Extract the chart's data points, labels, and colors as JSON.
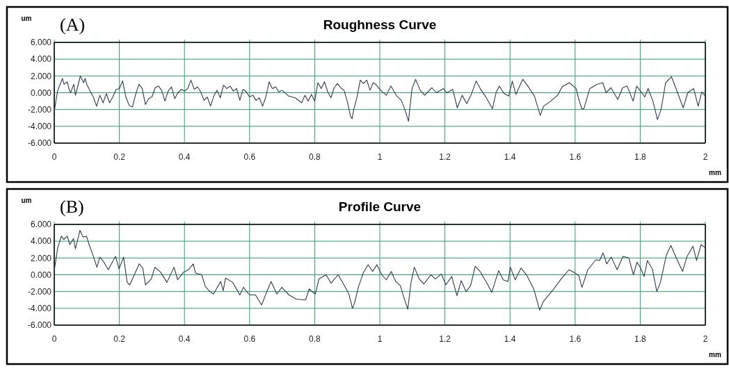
{
  "chart_data": [
    {
      "type": "line",
      "title": "Roughness Curve",
      "xlabel": "mm",
      "ylabel": "um",
      "annotations": [
        "(A)"
      ],
      "grid": true,
      "marker": "none",
      "line_style": "solid",
      "xlim": [
        0,
        2
      ],
      "xticks": [
        0,
        0.2,
        0.4,
        0.6,
        0.8,
        1,
        1.2,
        1.4,
        1.6,
        1.8,
        2
      ],
      "ylim": [
        -6,
        6
      ],
      "yticks": [
        {
          "value": 6,
          "label": "6.000"
        },
        {
          "value": 4,
          "label": "4.000"
        },
        {
          "value": 2,
          "label": "2.000"
        },
        {
          "value": 0,
          "label": "0.000"
        },
        {
          "value": -2,
          "label": "-2.000"
        },
        {
          "value": -4,
          "label": "-4.000"
        },
        {
          "value": -6,
          "label": "-6.000"
        }
      ],
      "series": [
        {
          "color": "#2b3a4f",
          "x": [
            0,
            0.005,
            0.01,
            0.02,
            0.025,
            0.03,
            0.04,
            0.045,
            0.05,
            0.06,
            0.065,
            0.075,
            0.08,
            0.09,
            0.095,
            0.1,
            0.11,
            0.12,
            0.13,
            0.14,
            0.15,
            0.16,
            0.17,
            0.18,
            0.19,
            0.2,
            0.21,
            0.22,
            0.23,
            0.24,
            0.25,
            0.26,
            0.27,
            0.28,
            0.29,
            0.3,
            0.31,
            0.32,
            0.33,
            0.34,
            0.35,
            0.36,
            0.37,
            0.38,
            0.39,
            0.4,
            0.41,
            0.42,
            0.43,
            0.44,
            0.45,
            0.46,
            0.47,
            0.48,
            0.49,
            0.5,
            0.51,
            0.52,
            0.53,
            0.54,
            0.55,
            0.56,
            0.57,
            0.58,
            0.59,
            0.6,
            0.61,
            0.62,
            0.63,
            0.64,
            0.65,
            0.66,
            0.67,
            0.68,
            0.69,
            0.7,
            0.72,
            0.74,
            0.76,
            0.77,
            0.78,
            0.79,
            0.8,
            0.81,
            0.82,
            0.83,
            0.84,
            0.85,
            0.86,
            0.87,
            0.88,
            0.89,
            0.9,
            0.91,
            0.915,
            0.92,
            0.93,
            0.94,
            0.95,
            0.96,
            0.97,
            0.98,
            0.988,
            1.002,
            1.02,
            1.034,
            1.052,
            1.066,
            1.077,
            1.088,
            1.099,
            1.11,
            1.124,
            1.138,
            1.16,
            1.174,
            1.195,
            1.206,
            1.224,
            1.238,
            1.253,
            1.267,
            1.281,
            1.296,
            1.31,
            1.324,
            1.346,
            1.357,
            1.367,
            1.382,
            1.396,
            1.407,
            1.418,
            1.439,
            1.453,
            1.475,
            1.493,
            1.503,
            1.525,
            1.546,
            1.56,
            1.582,
            1.603,
            1.61,
            1.62,
            1.627,
            1.645,
            1.667,
            1.685,
            1.695,
            1.71,
            1.731,
            1.746,
            1.76,
            1.778,
            1.789,
            1.803,
            1.814,
            1.824,
            1.839,
            1.853,
            1.864,
            1.878,
            1.896,
            1.91,
            1.932,
            1.946,
            1.964,
            1.978,
            1.989,
            2
          ],
          "values": [
            -2.3,
            -1.0,
            0.2,
            1.2,
            1.7,
            1.0,
            1.3,
            0.5,
            0.0,
            1.0,
            -0.3,
            1.2,
            2.0,
            1.2,
            1.7,
            1.0,
            0.2,
            -0.5,
            -1.6,
            -0.3,
            -1.2,
            -0.1,
            -1.2,
            -0.5,
            0.4,
            0.5,
            1.4,
            -0.5,
            -1.5,
            -1.7,
            -0.2,
            1.0,
            0.5,
            -1.4,
            -0.7,
            -0.5,
            0.6,
            0.8,
            0.3,
            -1.0,
            0.2,
            0.7,
            -0.7,
            0.0,
            0.4,
            0.2,
            0.5,
            1.5,
            0.4,
            0.7,
            0.1,
            -0.9,
            -0.5,
            -1.6,
            -0.4,
            0.3,
            -0.6,
            0.9,
            0.5,
            0.8,
            0.2,
            0.5,
            -0.9,
            0.4,
            0.1,
            -0.5,
            -0.3,
            -0.9,
            -0.6,
            -1.6,
            -0.5,
            1.3,
            0.5,
            0.7,
            0.1,
            0.3,
            -0.4,
            -0.6,
            -1.2,
            -0.3,
            -1.0,
            -0.2,
            -1.0,
            1.2,
            0.5,
            1.3,
            0.1,
            -0.6,
            0.6,
            1.1,
            0.6,
            0.3,
            -1.0,
            -2.8,
            -3.1,
            -2.0,
            -0.5,
            1.5,
            1.1,
            1.5,
            0.3,
            1.2,
            1.0,
            0.3,
            -0.3,
            0.8,
            -0.4,
            -0.9,
            -2.0,
            -3.4,
            0.5,
            1.6,
            0.3,
            -0.3,
            0.6,
            0.0,
            0.5,
            0.0,
            0.4,
            -1.8,
            -0.3,
            -1.3,
            -0.2,
            1.4,
            0.4,
            -0.4,
            -1.9,
            0.0,
            0.8,
            -0.1,
            -0.4,
            1.4,
            -0.2,
            1.6,
            0.9,
            -0.4,
            -2.7,
            -1.6,
            -1.0,
            -0.3,
            0.7,
            1.2,
            0.5,
            -0.6,
            -1.9,
            -1.9,
            0.5,
            1.0,
            1.2,
            0.0,
            0.6,
            -0.8,
            0.6,
            0.8,
            -1.0,
            0.8,
            0.1,
            -0.5,
            0.5,
            -1.0,
            -3.2,
            -2.0,
            1.2,
            1.9,
            0.5,
            -1.8,
            0.0,
            0.5,
            -1.6,
            0.1,
            -0.4
          ]
        }
      ]
    },
    {
      "type": "line",
      "title": "Profile Curve",
      "xlabel": "mm",
      "ylabel": "um",
      "annotations": [
        "(B)"
      ],
      "grid": true,
      "marker": "none",
      "line_style": "solid",
      "xlim": [
        0,
        2
      ],
      "xticks": [
        0,
        0.2,
        0.4,
        0.6,
        0.8,
        1,
        1.2,
        1.4,
        1.6,
        1.8,
        2
      ],
      "ylim": [
        -6,
        6
      ],
      "yticks": [
        {
          "value": 6,
          "label": "6.000"
        },
        {
          "value": 4,
          "label": "4.000"
        },
        {
          "value": 2,
          "label": "2.000"
        },
        {
          "value": 0,
          "label": "0.000"
        },
        {
          "value": -2,
          "label": "-2.000"
        },
        {
          "value": -4,
          "label": "-4.000"
        },
        {
          "value": -6,
          "label": "-6.000"
        }
      ],
      "series": [
        {
          "color": "#2b3a4f",
          "x": [
            0,
            0.004,
            0.011,
            0.022,
            0.029,
            0.04,
            0.048,
            0.059,
            0.065,
            0.074,
            0.079,
            0.088,
            0.099,
            0.107,
            0.121,
            0.131,
            0.14,
            0.151,
            0.166,
            0.188,
            0.199,
            0.213,
            0.224,
            0.232,
            0.246,
            0.261,
            0.272,
            0.28,
            0.298,
            0.309,
            0.327,
            0.346,
            0.368,
            0.379,
            0.397,
            0.412,
            0.427,
            0.434,
            0.453,
            0.464,
            0.478,
            0.489,
            0.511,
            0.519,
            0.526,
            0.548,
            0.57,
            0.581,
            0.6,
            0.618,
            0.637,
            0.651,
            0.666,
            0.684,
            0.699,
            0.721,
            0.743,
            0.772,
            0.783,
            0.802,
            0.813,
            0.835,
            0.85,
            0.872,
            0.89,
            0.905,
            0.916,
            0.923,
            0.934,
            0.949,
            0.964,
            0.978,
            0.991,
            1.006,
            1.02,
            1.035,
            1.049,
            1.063,
            1.074,
            1.086,
            1.096,
            1.106,
            1.121,
            1.135,
            1.157,
            1.171,
            1.189,
            1.203,
            1.221,
            1.237,
            1.25,
            1.265,
            1.279,
            1.293,
            1.308,
            1.329,
            1.344,
            1.365,
            1.379,
            1.394,
            1.401,
            1.416,
            1.434,
            1.452,
            1.473,
            1.491,
            1.502,
            1.53,
            1.559,
            1.581,
            1.6,
            1.611,
            1.621,
            1.639,
            1.664,
            1.675,
            1.686,
            1.697,
            1.711,
            1.729,
            1.747,
            1.765,
            1.779,
            1.79,
            1.801,
            1.812,
            1.822,
            1.837,
            1.851,
            1.862,
            1.88,
            1.894,
            1.912,
            1.93,
            1.944,
            1.962,
            1.973,
            1.987,
            2
          ],
          "values": [
            0.5,
            1.5,
            3.3,
            4.6,
            4.2,
            4.6,
            3.6,
            4.3,
            3.1,
            4.5,
            5.3,
            4.5,
            4.6,
            3.6,
            2.1,
            0.9,
            2.1,
            1.6,
            0.6,
            2.2,
            0.7,
            2.1,
            -0.9,
            -1.2,
            0.0,
            1.3,
            0.8,
            -1.2,
            -0.5,
            0.9,
            0.3,
            -0.9,
            0.9,
            -0.6,
            0.3,
            0.6,
            1.3,
            0.2,
            0.0,
            -1.4,
            -2.0,
            -2.3,
            -0.8,
            -1.9,
            -0.4,
            -0.9,
            -2.4,
            -1.5,
            -2.4,
            -2.4,
            -3.6,
            -2.2,
            -0.8,
            -2.3,
            -1.5,
            -2.4,
            -2.9,
            -3.0,
            -1.7,
            -2.3,
            -0.5,
            0.0,
            -1.0,
            0.0,
            -1.2,
            -2.3,
            -4.0,
            -3.3,
            -1.5,
            0.2,
            1.2,
            0.4,
            1.2,
            0.0,
            -0.6,
            0.4,
            -0.8,
            -1.3,
            -2.7,
            -4.1,
            -0.9,
            0.9,
            -0.5,
            -1.1,
            0.0,
            -0.5,
            0.1,
            -1.2,
            -0.2,
            -2.5,
            -0.7,
            -2.0,
            -1.3,
            1.0,
            0.4,
            -1.0,
            -2.1,
            0.5,
            -0.6,
            -0.8,
            0.9,
            -0.6,
            0.8,
            -0.1,
            -1.7,
            -4.2,
            -3.2,
            -1.9,
            -0.4,
            0.6,
            0.2,
            -0.1,
            -1.5,
            0.6,
            1.8,
            1.7,
            2.6,
            1.3,
            2.1,
            0.6,
            2.2,
            2.0,
            0.0,
            1.5,
            0.8,
            -0.2,
            1.7,
            0.7,
            -2.0,
            -0.9,
            2.3,
            3.5,
            1.9,
            0.4,
            2.2,
            3.4,
            1.7,
            3.6,
            3.2
          ]
        }
      ]
    }
  ]
}
